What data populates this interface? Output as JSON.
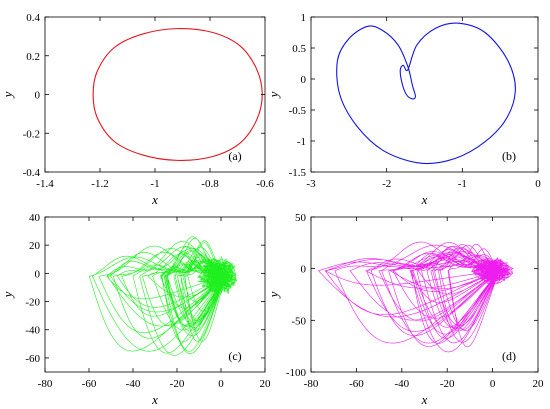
{
  "chart_data": [
    {
      "type": "line",
      "panel_label": "(a)",
      "xlabel": "x",
      "ylabel": "y",
      "xlim": [
        -1.4,
        -0.6
      ],
      "ylim": [
        -0.4,
        0.4
      ],
      "xticks": [
        -1.4,
        -1.2,
        -1,
        -0.8,
        -0.6
      ],
      "yticks": [
        -0.4,
        -0.2,
        0,
        0.2,
        0.4
      ],
      "xtick_labels": [
        "-1.4",
        "-1.2",
        "-1",
        "-0.8",
        "-0.6"
      ],
      "ytick_labels": [
        "-0.4",
        "-0.2",
        "0",
        "0.2",
        "0.4"
      ],
      "color": "#e8141c",
      "series": [
        {
          "description": "closed limit cycle (ellipse)",
          "x": [
            -0.61,
            -0.63,
            -0.69,
            -0.79,
            -0.92,
            -1.05,
            -1.15,
            -1.21,
            -1.225,
            -1.21,
            -1.15,
            -1.05,
            -0.92,
            -0.79,
            -0.69,
            -0.63,
            -0.61
          ],
          "y": [
            0,
            0.13,
            0.25,
            0.32,
            0.34,
            0.31,
            0.24,
            0.12,
            0,
            -0.12,
            -0.24,
            -0.31,
            -0.34,
            -0.32,
            -0.25,
            -0.13,
            0
          ]
        }
      ]
    },
    {
      "type": "line",
      "panel_label": "(b)",
      "xlabel": "x",
      "ylabel": "y",
      "xlim": [
        -3,
        0
      ],
      "ylim": [
        -1.5,
        1
      ],
      "xticks": [
        -3,
        -2,
        -1,
        0
      ],
      "yticks": [
        -1.5,
        -1,
        -0.5,
        0,
        0.5,
        1
      ],
      "xtick_labels": [
        "-3",
        "-2",
        "-1",
        "0"
      ],
      "ytick_labels": [
        "-1.5",
        "-1",
        "-0.5",
        "0",
        "0.5",
        "1"
      ],
      "color": "#1414e6",
      "series": [
        {
          "description": "period-2 limit cycle with inner loop",
          "x": [
            -1.72,
            -1.6,
            -1.35,
            -1.05,
            -0.7,
            -0.4,
            -0.3,
            -0.45,
            -0.8,
            -1.2,
            -1.6,
            -2.05,
            -2.4,
            -2.62,
            -2.65,
            -2.5,
            -2.25,
            -2.05,
            -1.85,
            -1.72,
            -1.66,
            -1.62,
            -1.66,
            -1.74,
            -1.8,
            -1.82,
            -1.78,
            -1.72
          ],
          "y": [
            0.15,
            0.55,
            0.82,
            0.9,
            0.75,
            0.3,
            -0.2,
            -0.7,
            -1.1,
            -1.32,
            -1.35,
            -1.15,
            -0.75,
            -0.25,
            0.3,
            0.65,
            0.85,
            0.78,
            0.55,
            0.2,
            -0.1,
            -0.28,
            -0.32,
            -0.25,
            -0.05,
            0.15,
            0.22,
            0.15
          ]
        }
      ]
    },
    {
      "type": "line",
      "panel_label": "(c)",
      "xlabel": "x",
      "ylabel": "y",
      "xlim": [
        -80,
        20
      ],
      "ylim": [
        -70,
        40
      ],
      "xticks": [
        -80,
        -60,
        -40,
        -20,
        0,
        20
      ],
      "yticks": [
        -60,
        -40,
        -20,
        0,
        20,
        40
      ],
      "xtick_labels": [
        "-80",
        "-60",
        "-40",
        "-20",
        "0",
        "20"
      ],
      "ytick_labels": [
        "-60",
        "-40",
        "-20",
        "0",
        "20",
        "40"
      ],
      "color": "#1eef1e",
      "description": "chaotic attractor; x approx -62 to 2, y approx -65 to 32"
    },
    {
      "type": "line",
      "panel_label": "(d)",
      "xlabel": "x",
      "ylabel": "y",
      "xlim": [
        -80,
        20
      ],
      "ylim": [
        -100,
        50
      ],
      "xticks": [
        -80,
        -60,
        -40,
        -20,
        0,
        20
      ],
      "yticks": [
        -100,
        -50,
        0,
        50
      ],
      "xtick_labels": [
        "-80",
        "-60",
        "-40",
        "-20",
        "0",
        "20"
      ],
      "ytick_labels": [
        "-100",
        "-50",
        "0",
        "50"
      ],
      "color": "#ee1eee",
      "description": "chaotic attractor; x approx -78 to 3, y approx -88 to 32"
    }
  ]
}
